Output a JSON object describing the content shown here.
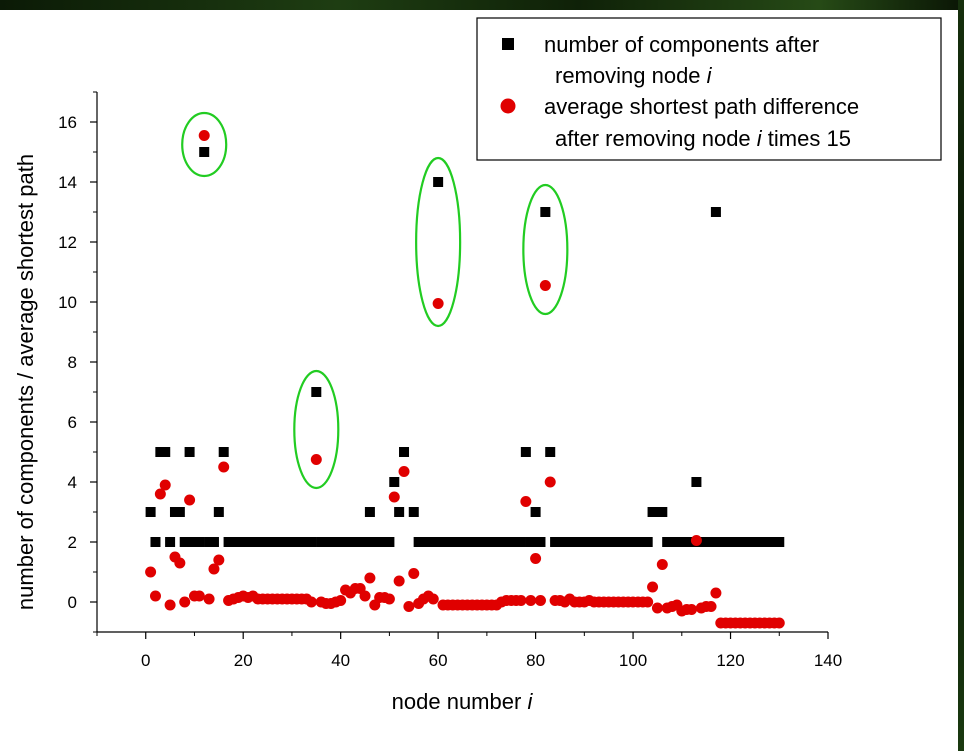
{
  "chart_data": {
    "type": "scatter",
    "xlabel": "node number",
    "xlabel_var": "i",
    "ylabel": "number of components / average shortest path",
    "xlim": [
      -10,
      140
    ],
    "ylim": [
      -1,
      17
    ],
    "x_ticks": [
      0,
      20,
      40,
      60,
      80,
      100,
      120,
      140
    ],
    "y_ticks": [
      0,
      2,
      4,
      6,
      8,
      10,
      12,
      14,
      16
    ],
    "legend": {
      "position": "top-right",
      "entries": [
        {
          "line1": "number of components after",
          "line2_pre": "removing node ",
          "line2_var": "i",
          "line2_post": ""
        },
        {
          "line1": "average shortest path difference",
          "line2_pre": "after removing node ",
          "line2_var": "i",
          "line2_post": " times 15"
        }
      ]
    },
    "series": [
      {
        "name": "number of components after removing node i",
        "marker": "square",
        "color": "#000000",
        "points": [
          [
            1,
            3
          ],
          [
            2,
            2
          ],
          [
            3,
            5
          ],
          [
            4,
            5
          ],
          [
            5,
            2
          ],
          [
            6,
            3
          ],
          [
            7,
            3
          ],
          [
            8,
            2
          ],
          [
            9,
            5
          ],
          [
            10,
            2
          ],
          [
            11,
            2
          ],
          [
            12,
            15
          ],
          [
            13,
            2
          ],
          [
            14,
            2
          ],
          [
            15,
            3
          ],
          [
            16,
            5
          ],
          [
            17,
            2
          ],
          [
            18,
            2
          ],
          [
            19,
            2
          ],
          [
            20,
            2
          ],
          [
            21,
            2
          ],
          [
            22,
            2
          ],
          [
            23,
            2
          ],
          [
            24,
            2
          ],
          [
            25,
            2
          ],
          [
            26,
            2
          ],
          [
            27,
            2
          ],
          [
            28,
            2
          ],
          [
            29,
            2
          ],
          [
            30,
            2
          ],
          [
            31,
            2
          ],
          [
            32,
            2
          ],
          [
            33,
            2
          ],
          [
            34,
            2
          ],
          [
            35,
            7
          ],
          [
            36,
            2
          ],
          [
            37,
            2
          ],
          [
            38,
            2
          ],
          [
            39,
            2
          ],
          [
            40,
            2
          ],
          [
            41,
            2
          ],
          [
            42,
            2
          ],
          [
            43,
            2
          ],
          [
            44,
            2
          ],
          [
            45,
            2
          ],
          [
            46,
            3
          ],
          [
            47,
            2
          ],
          [
            48,
            2
          ],
          [
            49,
            2
          ],
          [
            50,
            2
          ],
          [
            51,
            4
          ],
          [
            52,
            3
          ],
          [
            53,
            5
          ],
          [
            55,
            3
          ],
          [
            56,
            2
          ],
          [
            57,
            2
          ],
          [
            58,
            2
          ],
          [
            59,
            2
          ],
          [
            60,
            14
          ],
          [
            61,
            2
          ],
          [
            62,
            2
          ],
          [
            63,
            2
          ],
          [
            64,
            2
          ],
          [
            65,
            2
          ],
          [
            66,
            2
          ],
          [
            67,
            2
          ],
          [
            68,
            2
          ],
          [
            69,
            2
          ],
          [
            70,
            2
          ],
          [
            71,
            2
          ],
          [
            72,
            2
          ],
          [
            73,
            2
          ],
          [
            74,
            2
          ],
          [
            75,
            2
          ],
          [
            76,
            2
          ],
          [
            77,
            2
          ],
          [
            78,
            5
          ],
          [
            79,
            2
          ],
          [
            80,
            3
          ],
          [
            81,
            2
          ],
          [
            82,
            13
          ],
          [
            83,
            5
          ],
          [
            84,
            2
          ],
          [
            85,
            2
          ],
          [
            86,
            2
          ],
          [
            87,
            2
          ],
          [
            88,
            2
          ],
          [
            89,
            2
          ],
          [
            90,
            2
          ],
          [
            91,
            2
          ],
          [
            92,
            2
          ],
          [
            93,
            2
          ],
          [
            94,
            2
          ],
          [
            95,
            2
          ],
          [
            96,
            2
          ],
          [
            97,
            2
          ],
          [
            98,
            2
          ],
          [
            99,
            2
          ],
          [
            100,
            2
          ],
          [
            101,
            2
          ],
          [
            102,
            2
          ],
          [
            103,
            2
          ],
          [
            104,
            3
          ],
          [
            105,
            3
          ],
          [
            106,
            3
          ],
          [
            107,
            2
          ],
          [
            108,
            2
          ],
          [
            109,
            2
          ],
          [
            110,
            2
          ],
          [
            111,
            2
          ],
          [
            112,
            2
          ],
          [
            113,
            4
          ],
          [
            114,
            2
          ],
          [
            115,
            2
          ],
          [
            116,
            2
          ],
          [
            117,
            13
          ],
          [
            118,
            2
          ],
          [
            119,
            2
          ],
          [
            120,
            2
          ],
          [
            121,
            2
          ],
          [
            122,
            2
          ],
          [
            123,
            2
          ],
          [
            124,
            2
          ],
          [
            125,
            2
          ],
          [
            126,
            2
          ],
          [
            127,
            2
          ],
          [
            128,
            2
          ],
          [
            129,
            2
          ],
          [
            130,
            2
          ]
        ]
      },
      {
        "name": "average shortest path difference after removing node i times 15",
        "marker": "circle",
        "color": "#e00000",
        "points": [
          [
            1,
            1.0
          ],
          [
            2,
            0.2
          ],
          [
            3,
            3.6
          ],
          [
            4,
            3.9
          ],
          [
            5,
            -0.1
          ],
          [
            6,
            1.5
          ],
          [
            7,
            1.3
          ],
          [
            8,
            0.0
          ],
          [
            9,
            3.4
          ],
          [
            10,
            0.2
          ],
          [
            11,
            0.2
          ],
          [
            12,
            15.55
          ],
          [
            13,
            0.1
          ],
          [
            14,
            1.1
          ],
          [
            15,
            1.4
          ],
          [
            16,
            4.5
          ],
          [
            17,
            0.05
          ],
          [
            18,
            0.1
          ],
          [
            19,
            0.15
          ],
          [
            20,
            0.2
          ],
          [
            21,
            0.15
          ],
          [
            22,
            0.2
          ],
          [
            23,
            0.1
          ],
          [
            24,
            0.1
          ],
          [
            25,
            0.1
          ],
          [
            26,
            0.1
          ],
          [
            27,
            0.1
          ],
          [
            28,
            0.1
          ],
          [
            29,
            0.1
          ],
          [
            30,
            0.1
          ],
          [
            31,
            0.1
          ],
          [
            32,
            0.1
          ],
          [
            33,
            0.1
          ],
          [
            34,
            0.0
          ],
          [
            35,
            4.75
          ],
          [
            36,
            0.0
          ],
          [
            37,
            -0.05
          ],
          [
            38,
            -0.05
          ],
          [
            39,
            0.0
          ],
          [
            40,
            0.05
          ],
          [
            41,
            0.4
          ],
          [
            42,
            0.3
          ],
          [
            43,
            0.45
          ],
          [
            44,
            0.45
          ],
          [
            45,
            0.2
          ],
          [
            46,
            0.8
          ],
          [
            47,
            -0.1
          ],
          [
            48,
            0.15
          ],
          [
            49,
            0.15
          ],
          [
            50,
            0.1
          ],
          [
            51,
            3.5
          ],
          [
            52,
            0.7
          ],
          [
            53,
            4.35
          ],
          [
            54,
            -0.15
          ],
          [
            55,
            0.95
          ],
          [
            56,
            -0.05
          ],
          [
            57,
            0.1
          ],
          [
            58,
            0.2
          ],
          [
            59,
            0.1
          ],
          [
            60,
            9.95
          ],
          [
            61,
            -0.1
          ],
          [
            62,
            -0.1
          ],
          [
            63,
            -0.1
          ],
          [
            64,
            -0.1
          ],
          [
            65,
            -0.1
          ],
          [
            66,
            -0.1
          ],
          [
            67,
            -0.1
          ],
          [
            68,
            -0.1
          ],
          [
            69,
            -0.1
          ],
          [
            70,
            -0.1
          ],
          [
            71,
            -0.1
          ],
          [
            72,
            -0.1
          ],
          [
            73,
            0.0
          ],
          [
            74,
            0.05
          ],
          [
            75,
            0.05
          ],
          [
            76,
            0.05
          ],
          [
            77,
            0.05
          ],
          [
            78,
            3.35
          ],
          [
            79,
            0.05
          ],
          [
            80,
            1.45
          ],
          [
            81,
            0.05
          ],
          [
            82,
            10.55
          ],
          [
            83,
            4.0
          ],
          [
            84,
            0.05
          ],
          [
            85,
            0.05
          ],
          [
            86,
            0.0
          ],
          [
            87,
            0.1
          ],
          [
            88,
            0.0
          ],
          [
            89,
            0.0
          ],
          [
            90,
            0.0
          ],
          [
            91,
            0.05
          ],
          [
            92,
            0.0
          ],
          [
            93,
            0.0
          ],
          [
            94,
            0.0
          ],
          [
            95,
            0.0
          ],
          [
            96,
            0.0
          ],
          [
            97,
            0.0
          ],
          [
            98,
            0.0
          ],
          [
            99,
            0.0
          ],
          [
            100,
            0.0
          ],
          [
            101,
            0.0
          ],
          [
            102,
            0.0
          ],
          [
            103,
            0.0
          ],
          [
            104,
            0.5
          ],
          [
            105,
            -0.2
          ],
          [
            106,
            1.25
          ],
          [
            107,
            -0.2
          ],
          [
            108,
            -0.15
          ],
          [
            109,
            -0.1
          ],
          [
            110,
            -0.3
          ],
          [
            111,
            -0.25
          ],
          [
            112,
            -0.25
          ],
          [
            113,
            2.05
          ],
          [
            114,
            -0.2
          ],
          [
            115,
            -0.15
          ],
          [
            116,
            -0.15
          ],
          [
            117,
            0.3
          ],
          [
            118,
            -0.7
          ],
          [
            119,
            -0.7
          ],
          [
            120,
            -0.7
          ],
          [
            121,
            -0.7
          ],
          [
            122,
            -0.7
          ],
          [
            123,
            -0.7
          ],
          [
            124,
            -0.7
          ],
          [
            125,
            -0.7
          ],
          [
            126,
            -0.7
          ],
          [
            127,
            -0.7
          ],
          [
            128,
            -0.7
          ],
          [
            129,
            -0.7
          ],
          [
            130,
            -0.7
          ]
        ]
      }
    ],
    "highlight_color": "#22cc22",
    "highlights": [
      {
        "x": 12,
        "y_low": 14.2,
        "y_high": 16.3
      },
      {
        "x": 35,
        "y_low": 3.8,
        "y_high": 7.7
      },
      {
        "x": 60,
        "y_low": 9.2,
        "y_high": 14.8
      },
      {
        "x": 82,
        "y_low": 9.6,
        "y_high": 13.9
      }
    ]
  }
}
